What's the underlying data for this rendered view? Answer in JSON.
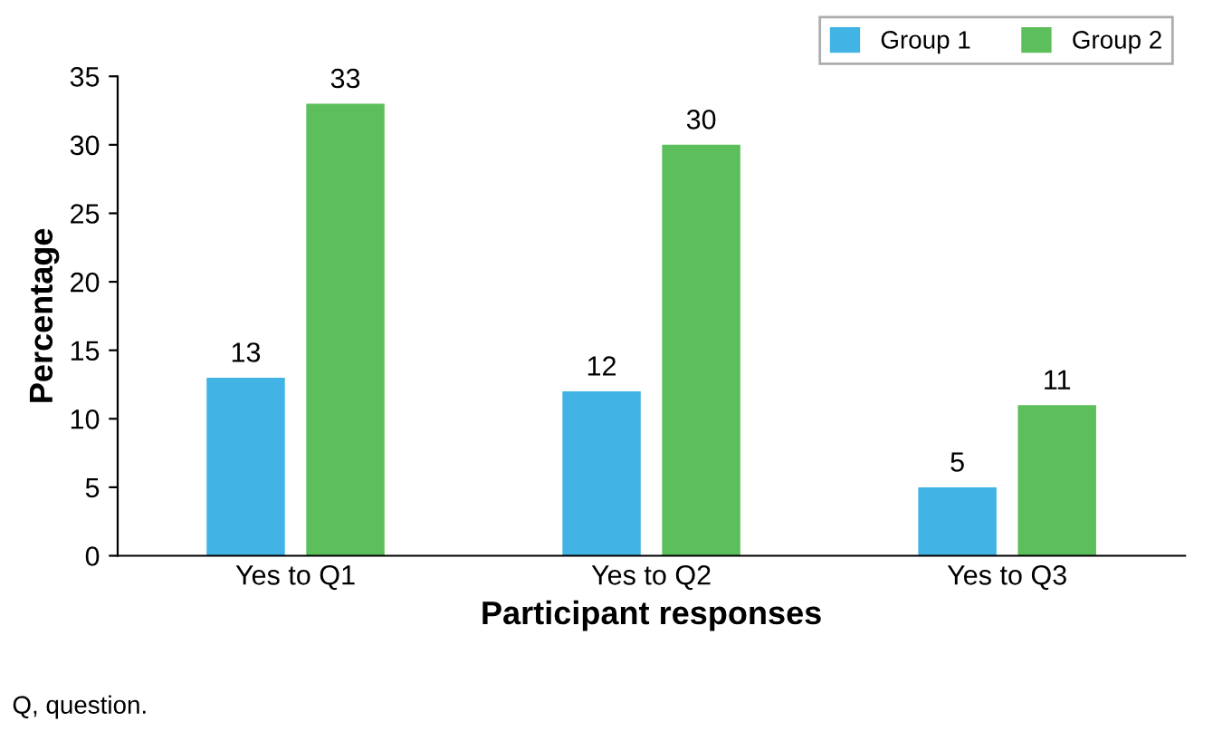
{
  "chart_data": {
    "type": "bar",
    "xlabel": "Participant responses",
    "ylabel": "Percentage",
    "categories": [
      "Yes to Q1",
      "Yes to Q2",
      "Yes to Q3"
    ],
    "series": [
      {
        "name": "Group 1",
        "color": "#41b3e4",
        "values": [
          13,
          12,
          5
        ]
      },
      {
        "name": "Group 2",
        "color": "#5dbf5b",
        "values": [
          33,
          30,
          11
        ]
      }
    ],
    "ylim": [
      0,
      35
    ],
    "yticks": [
      0,
      5,
      10,
      15,
      20,
      25,
      30,
      35
    ],
    "data_labels": true,
    "legend": "top right",
    "grid": false,
    "annotations": [
      "Q, question."
    ]
  }
}
